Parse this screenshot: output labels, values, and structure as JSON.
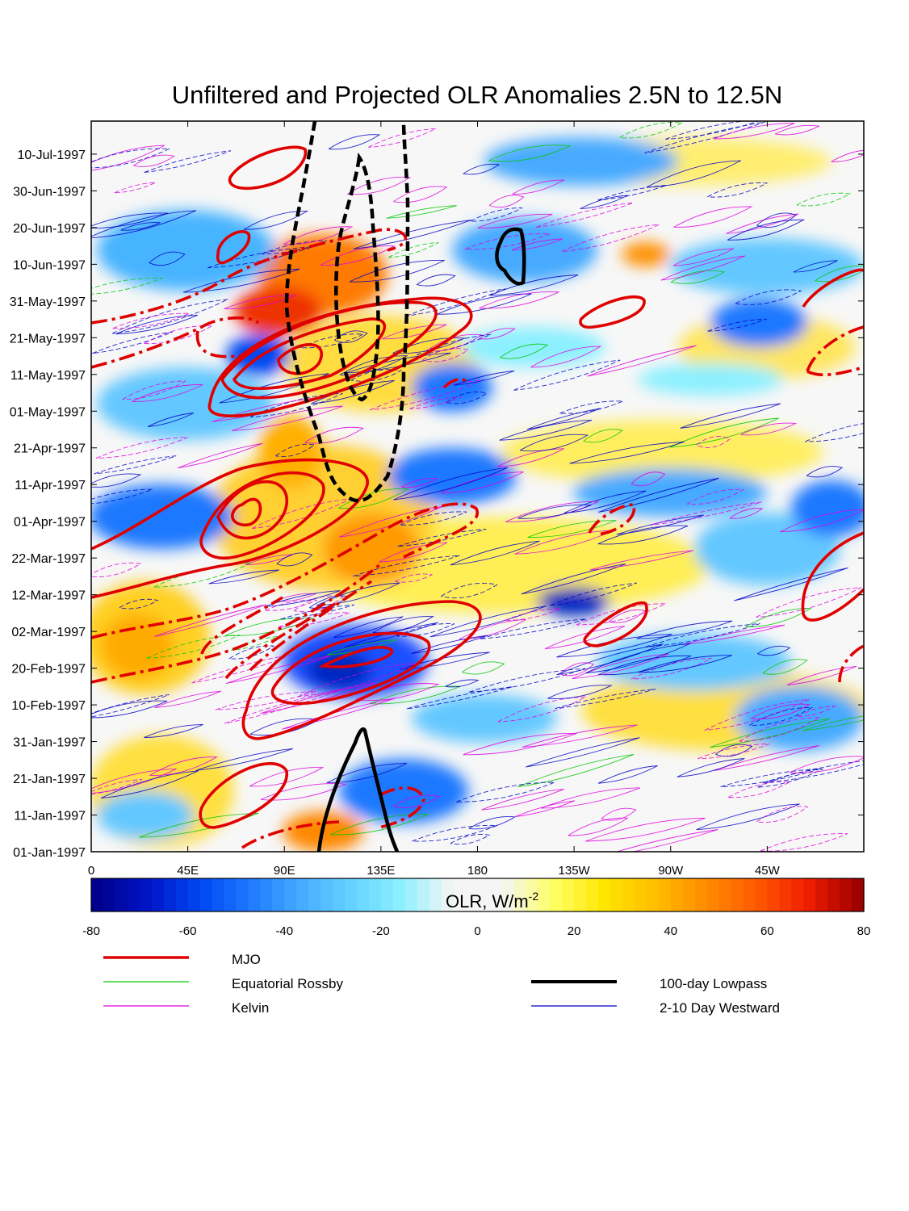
{
  "chart_data": {
    "type": "heatmap",
    "title": "Unfiltered and Projected OLR Anomalies 2.5N to 12.5N",
    "x_axis": {
      "ticks": [
        "0",
        "45E",
        "90E",
        "135E",
        "180",
        "135W",
        "90W",
        "45W"
      ],
      "tick_positions_deg": [
        0,
        45,
        90,
        135,
        180,
        225,
        270,
        315
      ],
      "range_deg": [
        0,
        360
      ]
    },
    "y_axis": {
      "ticks": [
        "01-Jan-1997",
        "11-Jan-1997",
        "21-Jan-1997",
        "31-Jan-1997",
        "10-Feb-1997",
        "20-Feb-1997",
        "02-Mar-1997",
        "12-Mar-1997",
        "22-Mar-1997",
        "01-Apr-1997",
        "11-Apr-1997",
        "21-Apr-1997",
        "01-May-1997",
        "11-May-1997",
        "21-May-1997",
        "31-May-1997",
        "10-Jun-1997",
        "20-Jun-1997",
        "30-Jun-1997",
        "10-Jul-1997"
      ],
      "range": [
        "01-Jan-1997",
        "19-Jul-1997"
      ]
    },
    "colorbar": {
      "label": "OLR, W/m",
      "label_superscript": "-2",
      "ticks": [
        "-80",
        "-60",
        "-40",
        "-20",
        "0",
        "20",
        "40",
        "60",
        "80"
      ],
      "range": [
        -80,
        80
      ],
      "colors": [
        "#00008c",
        "#0014c8",
        "#0046f0",
        "#1e78ff",
        "#46aaff",
        "#64d2ff",
        "#8cf0ff",
        "#f5f5f5",
        "#f5f5f5",
        "#ffff64",
        "#ffe600",
        "#ffbe00",
        "#ff8c00",
        "#ff5a00",
        "#f01e00",
        "#a00000"
      ]
    },
    "legend": [
      {
        "name": "MJO",
        "color": "#e00000",
        "width": 3.5
      },
      {
        "name": "Equatorial Rossby",
        "color": "#00c800",
        "width": 1.2
      },
      {
        "name": "Kelvin",
        "color": "#e000e0",
        "width": 1.2
      },
      {
        "name": "100-day Lowpass",
        "color": "#000000",
        "width": 4
      },
      {
        "name": "2-10 Day Westward",
        "color": "#0000c8",
        "width": 1.2
      }
    ]
  }
}
